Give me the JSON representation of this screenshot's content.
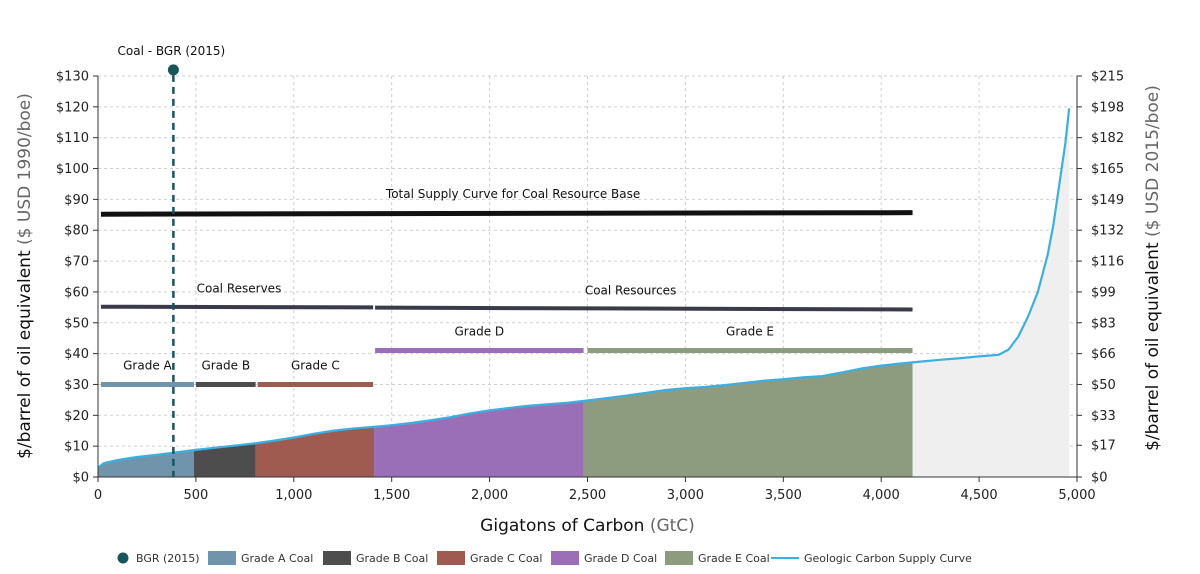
{
  "chart_data": {
    "type": "area",
    "xlabel": "Gigatons of Carbon",
    "xlabel_unit": "(GtC)",
    "ylabel": "$/barrel of oil equivalent",
    "ylabel_unit": "($ USD 1990/boe)",
    "y2label": "$/barrel of oil equivalent",
    "y2label_unit": "($ USD 2015/boe)",
    "xlim": [
      0,
      5000
    ],
    "ylim": [
      0,
      130
    ],
    "grid": "dashed",
    "legend_position": "bottom",
    "x_ticks": [
      {
        "value": 0,
        "label": "0"
      },
      {
        "value": 500,
        "label": "500"
      },
      {
        "value": 1000,
        "label": "1,000"
      },
      {
        "value": 1500,
        "label": "1,500"
      },
      {
        "value": 2000,
        "label": "2,000"
      },
      {
        "value": 2500,
        "label": "2,500"
      },
      {
        "value": 3000,
        "label": "3,000"
      },
      {
        "value": 3500,
        "label": "3,500"
      },
      {
        "value": 4000,
        "label": "4,000"
      },
      {
        "value": 4500,
        "label": "4,500"
      },
      {
        "value": 5000,
        "label": "5,000"
      }
    ],
    "y_ticks": [
      {
        "value": 0,
        "label": "$0"
      },
      {
        "value": 10,
        "label": "$10"
      },
      {
        "value": 20,
        "label": "$20"
      },
      {
        "value": 30,
        "label": "$30"
      },
      {
        "value": 40,
        "label": "$40"
      },
      {
        "value": 50,
        "label": "$50"
      },
      {
        "value": 60,
        "label": "$60"
      },
      {
        "value": 70,
        "label": "$70"
      },
      {
        "value": 80,
        "label": "$80"
      },
      {
        "value": 90,
        "label": "$90"
      },
      {
        "value": 100,
        "label": "$100"
      },
      {
        "value": 110,
        "label": "$110"
      },
      {
        "value": 120,
        "label": "$120"
      },
      {
        "value": 130,
        "label": "$130"
      }
    ],
    "y2_ticks": [
      {
        "value": 0,
        "label": "$0"
      },
      {
        "value": 10.3,
        "label": "$17"
      },
      {
        "value": 20,
        "label": "$33"
      },
      {
        "value": 30,
        "label": "$50"
      },
      {
        "value": 40,
        "label": "$66"
      },
      {
        "value": 50,
        "label": "$83"
      },
      {
        "value": 60,
        "label": "$99"
      },
      {
        "value": 70,
        "label": "$116"
      },
      {
        "value": 80,
        "label": "$132"
      },
      {
        "value": 90,
        "label": "$149"
      },
      {
        "value": 100,
        "label": "$165"
      },
      {
        "value": 110,
        "label": "$182"
      },
      {
        "value": 120,
        "label": "$198"
      },
      {
        "value": 130,
        "label": "$215"
      }
    ],
    "supply_curve": {
      "name": "Geologic Carbon Supply Curve",
      "color": "#3ab0e2",
      "x": [
        0,
        30,
        100,
        200,
        300,
        400,
        500,
        600,
        700,
        800,
        900,
        1000,
        1100,
        1200,
        1300,
        1400,
        1500,
        1600,
        1700,
        1800,
        1900,
        2000,
        2100,
        2200,
        2300,
        2400,
        2500,
        2600,
        2700,
        2800,
        2900,
        3000,
        3100,
        3200,
        3300,
        3400,
        3500,
        3600,
        3700,
        3800,
        3900,
        4000,
        4100,
        4200,
        4300,
        4400,
        4500,
        4600,
        4650,
        4700,
        4750,
        4800,
        4850,
        4880,
        4910,
        4940,
        4960
      ],
      "y": [
        3,
        4.5,
        5.5,
        6.5,
        7.2,
        8,
        8.8,
        9.5,
        10.2,
        10.9,
        11.8,
        12.8,
        14,
        15,
        15.7,
        16.2,
        16.8,
        17.5,
        18.4,
        19.4,
        20.6,
        21.6,
        22.4,
        23.1,
        23.6,
        24.1,
        24.8,
        25.6,
        26.4,
        27.3,
        28.2,
        28.8,
        29.2,
        29.8,
        30.5,
        31.2,
        31.7,
        32.3,
        32.7,
        33.9,
        35.2,
        36.1,
        36.8,
        37.4,
        38,
        38.5,
        39.1,
        39.6,
        41.3,
        45.5,
        52,
        60,
        72,
        82,
        95,
        108,
        119.5
      ]
    },
    "grades": [
      {
        "name": "Grade A Coal",
        "label": "Grade A",
        "x0": 0,
        "x1": 490,
        "color": "#6f94ab"
      },
      {
        "name": "Grade B Coal",
        "label": "Grade B",
        "x0": 490,
        "x1": 805,
        "color": "#4d4d4d"
      },
      {
        "name": "Grade C Coal",
        "label": "Grade C",
        "x0": 805,
        "x1": 1410,
        "color": "#a05b50"
      },
      {
        "name": "Grade D Coal",
        "label": "Grade D",
        "x0": 1410,
        "x1": 2480,
        "color": "#9b6fb8"
      },
      {
        "name": "Grade E Coal",
        "label": "Grade E",
        "x0": 2480,
        "x1": 4160,
        "color": "#8d9c7f"
      }
    ],
    "grade_bars": [
      {
        "label": "Grade A",
        "x0": 15,
        "x1": 490,
        "y": 30,
        "color": "#6f94ab"
      },
      {
        "label": "Grade B",
        "x0": 500,
        "x1": 805,
        "y": 30,
        "color": "#4d4d4d"
      },
      {
        "label": "Grade C",
        "x0": 815,
        "x1": 1405,
        "y": 30,
        "color": "#a05b50"
      },
      {
        "label": "Grade D",
        "x0": 1415,
        "x1": 2480,
        "y": 41,
        "color": "#9b6fb8"
      },
      {
        "label": "Grade E",
        "x0": 2500,
        "x1": 4160,
        "y": 41,
        "color": "#8d9c7f"
      }
    ],
    "supply_lines": [
      {
        "label": "Total Supply Curve for Coal Resource Base",
        "x0": 15,
        "x1": 4160,
        "y0": 85.2,
        "y1": 85.7,
        "color": "#111111",
        "width": 5
      },
      {
        "label": "Coal Reserves",
        "x0": 15,
        "x1": 1405,
        "y0": 55.2,
        "y1": 55.0,
        "color": "#3a3a4a",
        "width": 4
      },
      {
        "label": "Coal Resources",
        "x0": 1415,
        "x1": 4160,
        "y0": 54.9,
        "y1": 54.3,
        "color": "#3a3a4a",
        "width": 4
      }
    ],
    "bgr_marker": {
      "name": "BGR (2015)",
      "label": "Coal - BGR (2015)",
      "x": 385,
      "y": 132,
      "color": "#17575b"
    },
    "legend": [
      {
        "name": "BGR (2015)",
        "type": "dot",
        "color": "#17575b"
      },
      {
        "name": "Grade A Coal",
        "type": "box",
        "color": "#6f94ab"
      },
      {
        "name": "Grade B Coal",
        "type": "box",
        "color": "#4d4d4d"
      },
      {
        "name": "Grade C Coal",
        "type": "box",
        "color": "#a05b50"
      },
      {
        "name": "Grade D Coal",
        "type": "box",
        "color": "#9b6fb8"
      },
      {
        "name": "Grade E Coal",
        "type": "box",
        "color": "#8d9c7f"
      },
      {
        "name": "Geologic Carbon Supply Curve",
        "type": "line",
        "color": "#3ab0e2"
      }
    ]
  }
}
